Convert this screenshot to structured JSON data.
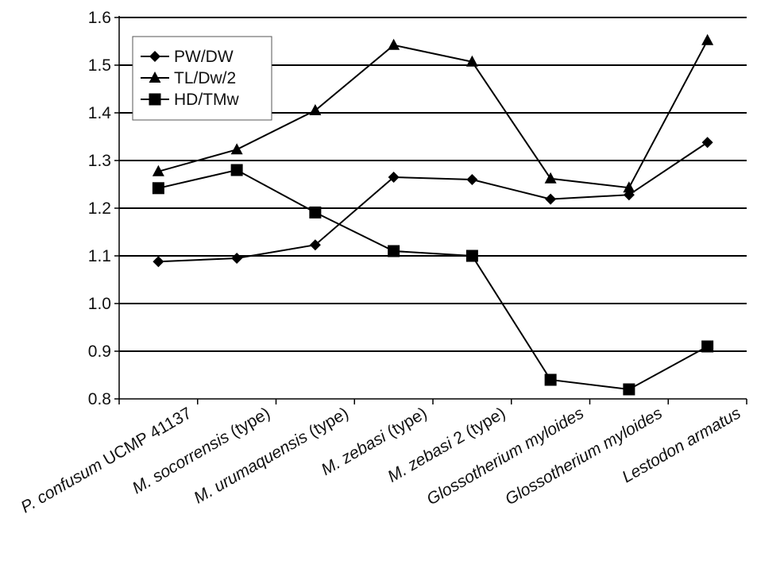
{
  "chart_data": {
    "type": "line",
    "title": "",
    "xlabel": "",
    "ylabel": "",
    "ylim": [
      0.8,
      1.6
    ],
    "yticks": [
      "0.8",
      "0.9",
      "1.0",
      "1.1",
      "1.2",
      "1.3",
      "1.4",
      "1.5",
      "1.6"
    ],
    "grid": "horizontal",
    "legend_position": "top-left",
    "categories": [
      {
        "prefix": "P. confusum",
        "suffix": " UCMP 41137"
      },
      {
        "prefix": "M. socorrensis",
        "suffix": " (type)"
      },
      {
        "prefix": "M. urumaquensis",
        "suffix": " (type)"
      },
      {
        "prefix": "M. zebasi",
        "suffix": " (type)"
      },
      {
        "prefix": "M. zebasi",
        "suffix": " 2 (type)"
      },
      {
        "prefix": "Glossotherium myloides",
        "suffix": ""
      },
      {
        "prefix": "Glossotherium myloides",
        "suffix": ""
      },
      {
        "prefix": "Lestodon armatus",
        "suffix": ""
      }
    ],
    "series": [
      {
        "name": "PW/DW",
        "marker": "diamond",
        "values": [
          1.088,
          1.095,
          1.123,
          1.265,
          1.26,
          1.219,
          1.228,
          1.338
        ]
      },
      {
        "name": "TL/Dw/2",
        "marker": "triangle",
        "values": [
          1.277,
          1.323,
          1.405,
          1.542,
          1.507,
          1.262,
          1.243,
          1.552
        ]
      },
      {
        "name": "HD/TMw",
        "marker": "square",
        "values": [
          1.242,
          1.28,
          1.191,
          1.11,
          1.1,
          0.84,
          0.82,
          0.91
        ]
      }
    ],
    "colors": {
      "line": "#000000",
      "grid": "#000000"
    }
  }
}
